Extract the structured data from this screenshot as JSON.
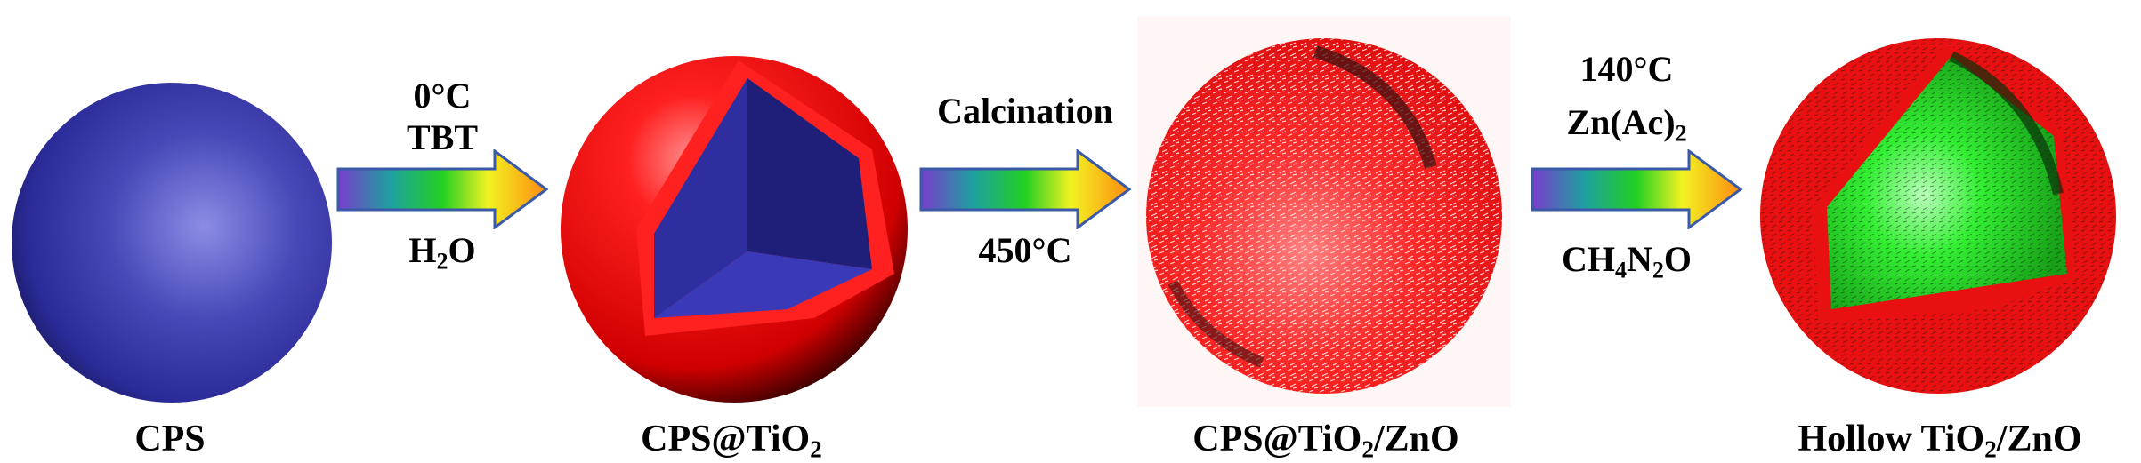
{
  "stages": [
    {
      "label": "CPS"
    },
    {
      "label_parts": [
        "CPS@TiO",
        "2",
        ""
      ]
    },
    {
      "label_parts": [
        "CPS@TiO",
        "2",
        "/ZnO"
      ]
    },
    {
      "label_parts": [
        "Hollow TiO",
        "2",
        "/ZnO"
      ]
    }
  ],
  "steps": [
    {
      "above": [
        "0°C",
        "TBT"
      ],
      "below_parts": [
        "H",
        "2",
        "O"
      ]
    },
    {
      "above": [
        "Calcination"
      ],
      "below": "450°C"
    },
    {
      "above": [
        "140°C"
      ],
      "above_formula_parts": [
        "Zn(Ac)",
        "2",
        ""
      ],
      "below_formula_parts": [
        "CH",
        "4",
        "N",
        "2",
        "O"
      ]
    }
  ],
  "colors": {
    "core_blue": "#3434a8",
    "shell_red": "#ff1010",
    "zno_green": "#22dd22",
    "arrow_orange": "#ff8c10"
  }
}
